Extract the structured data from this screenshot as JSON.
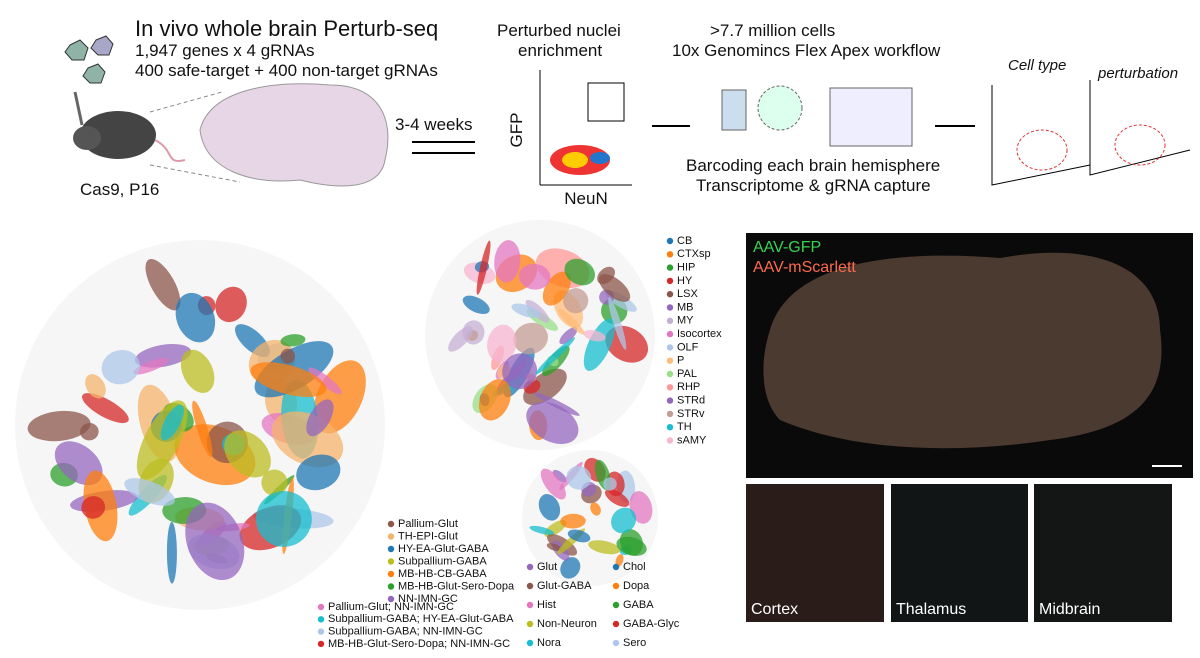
{
  "workflow": {
    "title": "In vivo whole brain Perturb-seq",
    "lines": [
      "1,947 genes x 4 gRNAs",
      "400 safe-target + 400 non-target gRNAs"
    ],
    "mouse": "Cas9, P16",
    "time": "3-4 weeks",
    "facs_title": [
      "Perturbed nuclei",
      "enrichment"
    ],
    "facs_y": "GFP",
    "facs_x": "NeuN",
    "cells_title": ">7.7 million cells",
    "cells_sub": "10x Genomincs Flex Apex workflow",
    "barcode": [
      "Barcoding each brain hemisphere",
      "Transcriptome & gRNA capture"
    ],
    "plot_labels": [
      "Cell type",
      "perturbation"
    ]
  },
  "legend_class": [
    {
      "label": "Pallium-Glut",
      "color": "#8c564b"
    },
    {
      "label": "TH-EPI-Glut",
      "color": "#f5b36b"
    },
    {
      "label": "HY-EA-Glut-GABA",
      "color": "#1f77b4"
    },
    {
      "label": "Subpallium-GABA",
      "color": "#bcbd22"
    },
    {
      "label": "MB-HB-CB-GABA",
      "color": "#ff7f0e"
    },
    {
      "label": "MB-HB-Glut-Sero-Dopa",
      "color": "#2ca02c"
    },
    {
      "label": "NN-IMN-GC",
      "color": "#9467bd"
    },
    {
      "label": "Pallium-Glut; NN-IMN-GC",
      "color": "#e377c2"
    },
    {
      "label": "Subpallium-GABA; HY-EA-Glut-GABA",
      "color": "#17becf"
    },
    {
      "label": "Subpallium-GABA; NN-IMN-GC",
      "color": "#aec7e8"
    },
    {
      "label": "MB-HB-Glut-Sero-Dopa; NN-IMN-GC",
      "color": "#d62728"
    }
  ],
  "legend_region": [
    {
      "label": "CB",
      "color": "#1f77b4"
    },
    {
      "label": "CTXsp",
      "color": "#ff7f0e"
    },
    {
      "label": "HIP",
      "color": "#2ca02c"
    },
    {
      "label": "HY",
      "color": "#d62728"
    },
    {
      "label": "LSX",
      "color": "#8c564b"
    },
    {
      "label": "MB",
      "color": "#9467bd"
    },
    {
      "label": "MY",
      "color": "#c5b0d5"
    },
    {
      "label": "Isocortex",
      "color": "#e377c2"
    },
    {
      "label": "OLF",
      "color": "#aec7e8"
    },
    {
      "label": "P",
      "color": "#ffbb78"
    },
    {
      "label": "PAL",
      "color": "#98df8a"
    },
    {
      "label": "RHP",
      "color": "#ff9896"
    },
    {
      "label": "STRd",
      "color": "#9467bd"
    },
    {
      "label": "STRv",
      "color": "#c49c94"
    },
    {
      "label": "TH",
      "color": "#17becf"
    },
    {
      "label": "sAMY",
      "color": "#f7b6d2"
    }
  ],
  "legend_nt": [
    {
      "label": "Glut",
      "color": "#9467bd"
    },
    {
      "label": "Glut-GABA",
      "color": "#8c564b"
    },
    {
      "label": "Hist",
      "color": "#e377c2"
    },
    {
      "label": "Non-Neuron",
      "color": "#bcbd22"
    },
    {
      "label": "Nora",
      "color": "#17becf"
    },
    {
      "label": "Chol",
      "color": "#1f77b4"
    },
    {
      "label": "Dopa",
      "color": "#ff7f0e"
    },
    {
      "label": "GABA",
      "color": "#2ca02c"
    },
    {
      "label": "GABA-Glyc",
      "color": "#d62728"
    },
    {
      "label": "Sero",
      "color": "#aec7e8"
    }
  ],
  "imaging": {
    "channels": [
      "AAV-GFP",
      "AAV-mScarlett"
    ],
    "regions": [
      "Cortex",
      "Thalamus",
      "Midbrain"
    ]
  }
}
